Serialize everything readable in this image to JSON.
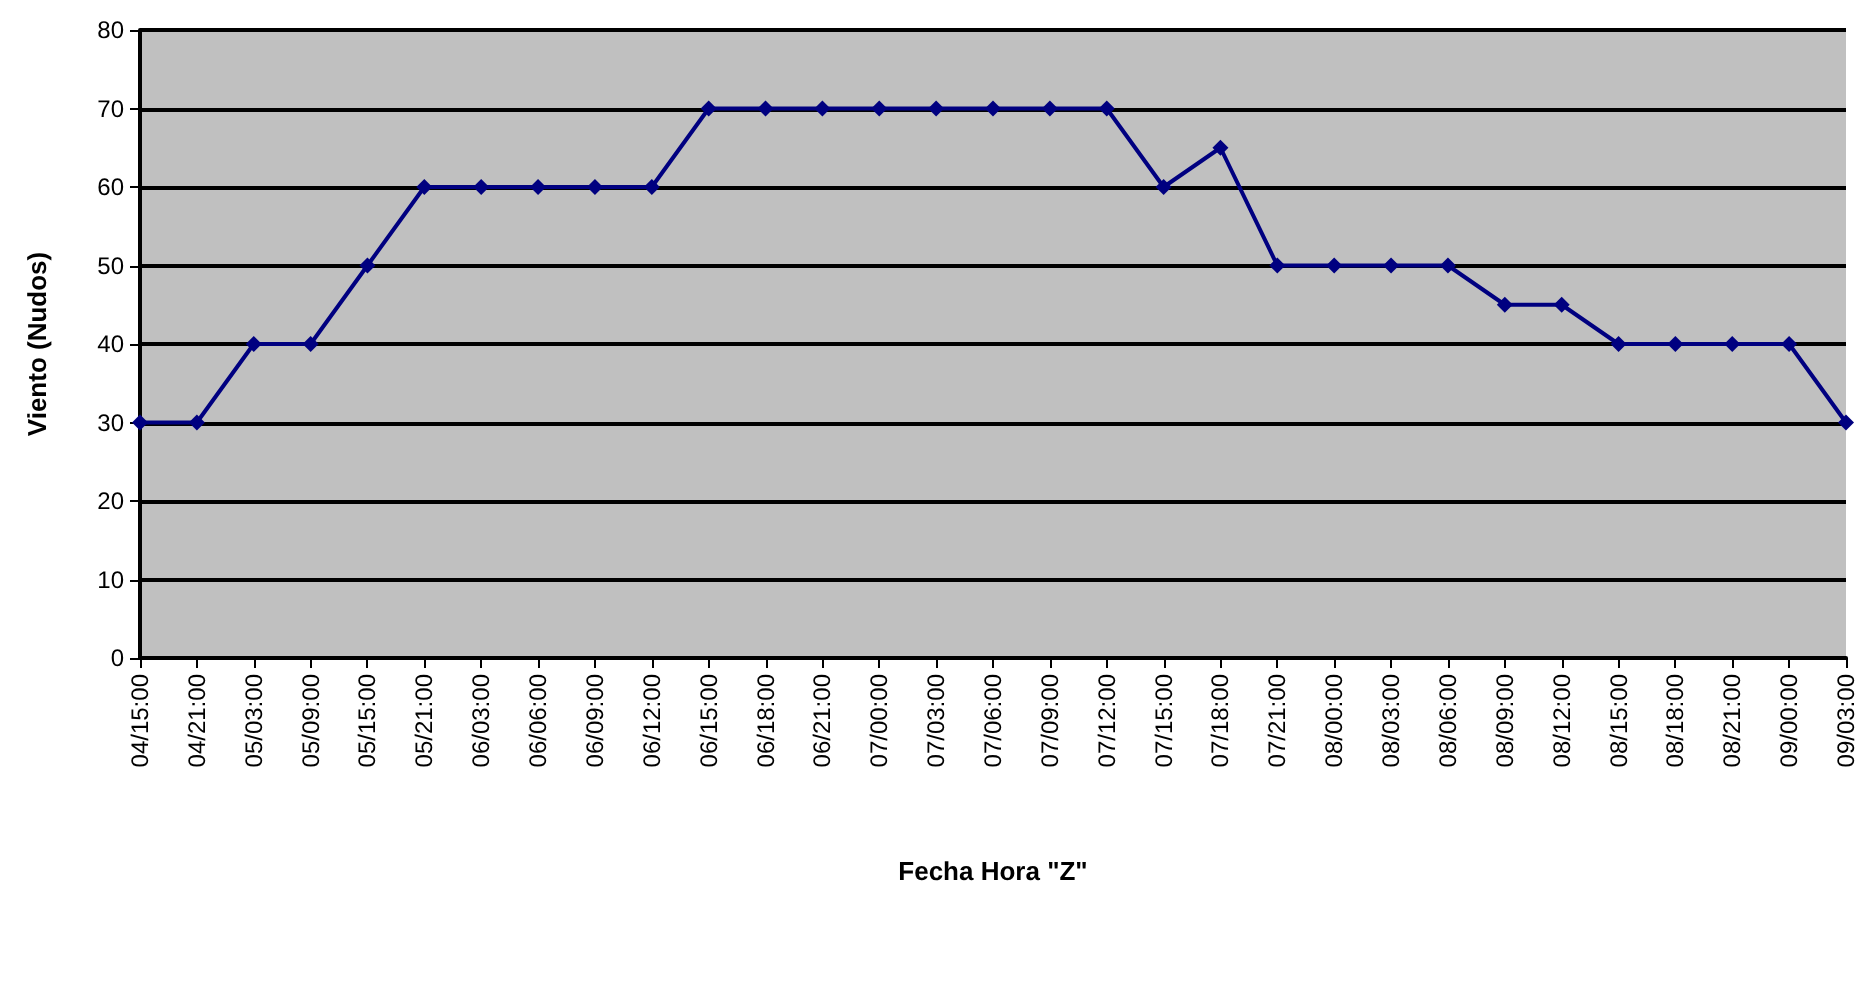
{
  "chart_data": {
    "type": "line",
    "xlabel": "Fecha Hora \"Z\"",
    "ylabel": "Viento (Nudos)",
    "categories": [
      "04/15:00",
      "04/21:00",
      "05/03:00",
      "05/09:00",
      "05/15:00",
      "05/21:00",
      "06/03:00",
      "06/06:00",
      "06/09:00",
      "06/12:00",
      "06/15:00",
      "06/18:00",
      "06/21:00",
      "07/00:00",
      "07/03:00",
      "07/06:00",
      "07/09:00",
      "07/12:00",
      "07/15:00",
      "07/18:00",
      "07/21:00",
      "08/00:00",
      "08/03:00",
      "08/06:00",
      "08/09:00",
      "08/12:00",
      "08/15:00",
      "08/18:00",
      "08/21:00",
      "09/00:00",
      "09/03:00"
    ],
    "series": [
      {
        "color": "#000080",
        "values": [
          30,
          30,
          40,
          40,
          50,
          60,
          60,
          60,
          60,
          60,
          70,
          70,
          70,
          70,
          70,
          70,
          70,
          70,
          60,
          65,
          50,
          50,
          50,
          50,
          45,
          45,
          40,
          40,
          40,
          40,
          30
        ]
      }
    ],
    "ylim": [
      0,
      80
    ],
    "yticks": [
      0,
      10,
      20,
      30,
      40,
      50,
      60,
      70,
      80
    ],
    "grid": "y",
    "marker": "diamond",
    "line_style": "solid"
  }
}
